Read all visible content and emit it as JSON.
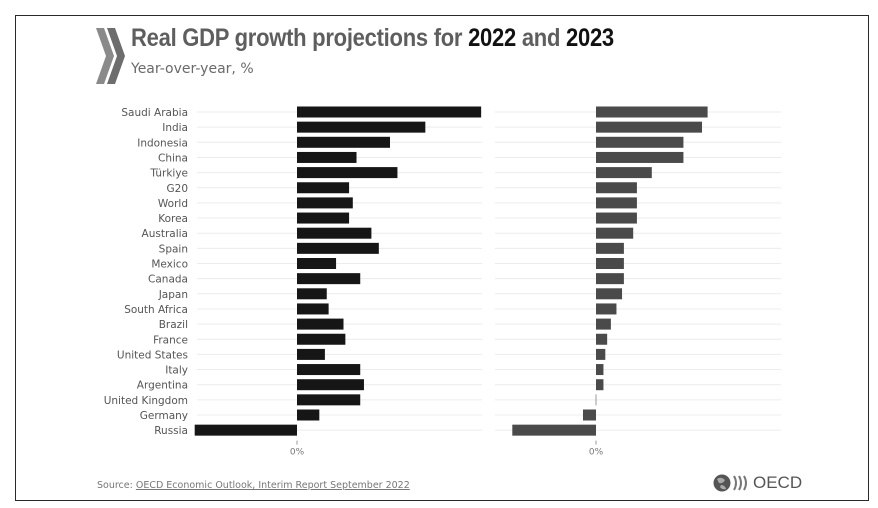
{
  "header": {
    "title_prefix": "Real GDP growth projections for ",
    "title_year1": "2022",
    "title_and": " and ",
    "title_year2": "2023",
    "subtitle": "Year-over-year, %"
  },
  "footer": {
    "source_label": "Source: ",
    "source_link": "OECD Economic Outlook, Interim Report September 2022",
    "logo_text": "OECD"
  },
  "colors": {
    "bar_2022": "#161616",
    "bar_2023": "#4a4a4a",
    "gridline": "#ececec",
    "label": "#555555"
  },
  "chart_data": {
    "type": "bar",
    "orientation": "horizontal",
    "title": "Real GDP growth projections for 2022 and 2023",
    "subtitle": "Year-over-year, %",
    "categories": [
      "Saudi Arabia",
      "India",
      "Indonesia",
      "China",
      "Türkiye",
      "G20",
      "World",
      "Korea",
      "Australia",
      "Spain",
      "Mexico",
      "Canada",
      "Japan",
      "South Africa",
      "Brazil",
      "France",
      "United States",
      "Italy",
      "Argentina",
      "United Kingdom",
      "Germany",
      "Russia"
    ],
    "series": [
      {
        "name": "2022",
        "values": [
          9.9,
          6.9,
          5.0,
          3.2,
          5.4,
          2.8,
          3.0,
          2.8,
          4.0,
          4.4,
          2.1,
          3.4,
          1.6,
          1.7,
          2.5,
          2.6,
          1.5,
          3.4,
          3.6,
          3.4,
          1.2,
          -5.5
        ]
      },
      {
        "name": "2023",
        "values": [
          6.0,
          5.7,
          4.7,
          4.7,
          3.0,
          2.2,
          2.2,
          2.2,
          2.0,
          1.5,
          1.5,
          1.5,
          1.4,
          1.1,
          0.8,
          0.6,
          0.5,
          0.4,
          0.4,
          0.0,
          -0.7,
          -4.5
        ]
      }
    ],
    "xlabel": "",
    "x_tick_label": "0%",
    "xlim": [
      -5.5,
      10
    ],
    "grid": true,
    "legend": "none"
  }
}
